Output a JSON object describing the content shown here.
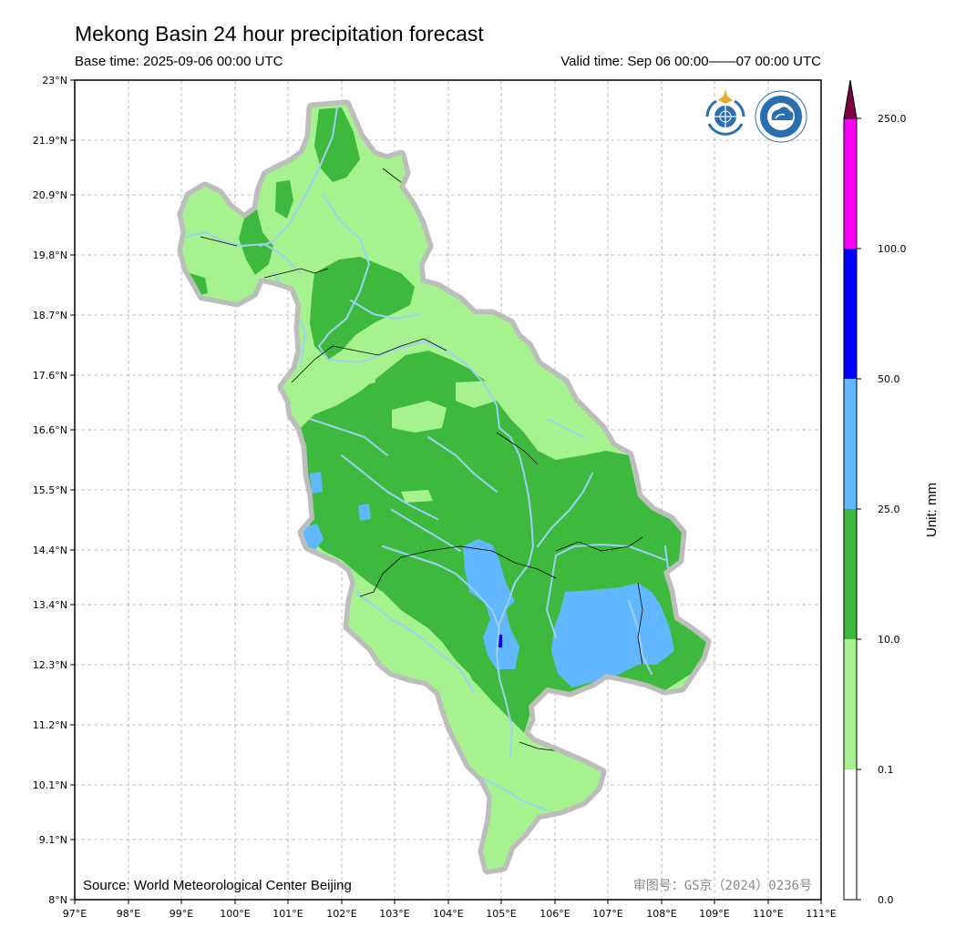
{
  "header": {
    "title": "Mekong Basin 24 hour precipitation forecast",
    "base_time": "Base time: 2025-09-06 00:00 UTC",
    "valid_time": "Valid time: Sep 06 00:00——07 00:00 UTC"
  },
  "map": {
    "lon_ticks": [
      "97°E",
      "98°E",
      "99°E",
      "100°E",
      "101°E",
      "102°E",
      "103°E",
      "104°E",
      "105°E",
      "106°E",
      "107°E",
      "108°E",
      "109°E",
      "110°E",
      "111°E"
    ],
    "lat_ticks": [
      "23°N",
      "21.9°N",
      "20.9°N",
      "19.8°N",
      "18.7°N",
      "17.6°N",
      "16.6°N",
      "15.5°N",
      "14.4°N",
      "13.4°N",
      "12.3°N",
      "11.2°N",
      "10.1°N",
      "9.1°N",
      "8°N"
    ],
    "lon_range": [
      97,
      111
    ],
    "lat_range": [
      8,
      23
    ],
    "grid": true,
    "source": "Source: World Meteorological Center Beijing",
    "approval": "审图号：GS京（2024）0236号",
    "logos": [
      "wmo-logo",
      "cma-logo"
    ]
  },
  "colorbar": {
    "unit": "Unit: mm",
    "labels": [
      "0.0",
      "0.1",
      "10.0",
      "25.0",
      "50.0",
      "100.0",
      "250.0"
    ],
    "colors": [
      "#ffffff",
      "#a6f28f",
      "#3dba3d",
      "#61b8ff",
      "#0000ff",
      "#fa00fa",
      "#800040"
    ],
    "extend": "max"
  },
  "colors": {
    "basin_outline": "#bdbdbd",
    "rivers": "#9ed0f5",
    "light_green": "#a6f28f",
    "green": "#3dba3d",
    "light_blue": "#61b8ff",
    "blue": "#0000ff"
  }
}
